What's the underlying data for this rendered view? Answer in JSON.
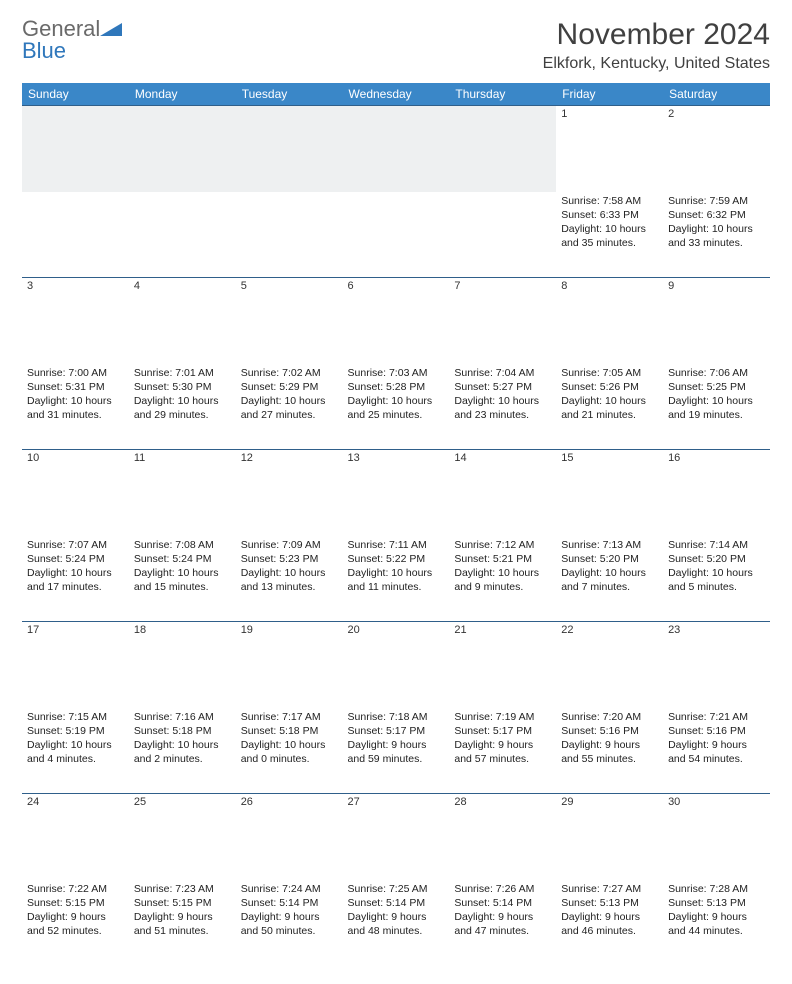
{
  "logo": {
    "part1": "General",
    "part2": "Blue"
  },
  "header": {
    "month_title": "November 2024",
    "location": "Elkfork, Kentucky, United States"
  },
  "colors": {
    "header_bg": "#3a87c8",
    "header_text": "#ffffff",
    "daynum_bg": "#eef0f1",
    "border": "#2f5f8a",
    "logo_gray": "#6a6a6a",
    "logo_blue": "#2f77bb",
    "text": "#222222"
  },
  "day_names": [
    "Sunday",
    "Monday",
    "Tuesday",
    "Wednesday",
    "Thursday",
    "Friday",
    "Saturday"
  ],
  "weeks": [
    {
      "nums": [
        "",
        "",
        "",
        "",
        "",
        "1",
        "2"
      ],
      "cells": [
        null,
        null,
        null,
        null,
        null,
        {
          "sunrise": "7:58 AM",
          "sunset": "6:33 PM",
          "daylight": "10 hours and 35 minutes."
        },
        {
          "sunrise": "7:59 AM",
          "sunset": "6:32 PM",
          "daylight": "10 hours and 33 minutes."
        }
      ]
    },
    {
      "nums": [
        "3",
        "4",
        "5",
        "6",
        "7",
        "8",
        "9"
      ],
      "cells": [
        {
          "sunrise": "7:00 AM",
          "sunset": "5:31 PM",
          "daylight": "10 hours and 31 minutes."
        },
        {
          "sunrise": "7:01 AM",
          "sunset": "5:30 PM",
          "daylight": "10 hours and 29 minutes."
        },
        {
          "sunrise": "7:02 AM",
          "sunset": "5:29 PM",
          "daylight": "10 hours and 27 minutes."
        },
        {
          "sunrise": "7:03 AM",
          "sunset": "5:28 PM",
          "daylight": "10 hours and 25 minutes."
        },
        {
          "sunrise": "7:04 AM",
          "sunset": "5:27 PM",
          "daylight": "10 hours and 23 minutes."
        },
        {
          "sunrise": "7:05 AM",
          "sunset": "5:26 PM",
          "daylight": "10 hours and 21 minutes."
        },
        {
          "sunrise": "7:06 AM",
          "sunset": "5:25 PM",
          "daylight": "10 hours and 19 minutes."
        }
      ]
    },
    {
      "nums": [
        "10",
        "11",
        "12",
        "13",
        "14",
        "15",
        "16"
      ],
      "cells": [
        {
          "sunrise": "7:07 AM",
          "sunset": "5:24 PM",
          "daylight": "10 hours and 17 minutes."
        },
        {
          "sunrise": "7:08 AM",
          "sunset": "5:24 PM",
          "daylight": "10 hours and 15 minutes."
        },
        {
          "sunrise": "7:09 AM",
          "sunset": "5:23 PM",
          "daylight": "10 hours and 13 minutes."
        },
        {
          "sunrise": "7:11 AM",
          "sunset": "5:22 PM",
          "daylight": "10 hours and 11 minutes."
        },
        {
          "sunrise": "7:12 AM",
          "sunset": "5:21 PM",
          "daylight": "10 hours and 9 minutes."
        },
        {
          "sunrise": "7:13 AM",
          "sunset": "5:20 PM",
          "daylight": "10 hours and 7 minutes."
        },
        {
          "sunrise": "7:14 AM",
          "sunset": "5:20 PM",
          "daylight": "10 hours and 5 minutes."
        }
      ]
    },
    {
      "nums": [
        "17",
        "18",
        "19",
        "20",
        "21",
        "22",
        "23"
      ],
      "cells": [
        {
          "sunrise": "7:15 AM",
          "sunset": "5:19 PM",
          "daylight": "10 hours and 4 minutes."
        },
        {
          "sunrise": "7:16 AM",
          "sunset": "5:18 PM",
          "daylight": "10 hours and 2 minutes."
        },
        {
          "sunrise": "7:17 AM",
          "sunset": "5:18 PM",
          "daylight": "10 hours and 0 minutes."
        },
        {
          "sunrise": "7:18 AM",
          "sunset": "5:17 PM",
          "daylight": "9 hours and 59 minutes."
        },
        {
          "sunrise": "7:19 AM",
          "sunset": "5:17 PM",
          "daylight": "9 hours and 57 minutes."
        },
        {
          "sunrise": "7:20 AM",
          "sunset": "5:16 PM",
          "daylight": "9 hours and 55 minutes."
        },
        {
          "sunrise": "7:21 AM",
          "sunset": "5:16 PM",
          "daylight": "9 hours and 54 minutes."
        }
      ]
    },
    {
      "nums": [
        "24",
        "25",
        "26",
        "27",
        "28",
        "29",
        "30"
      ],
      "cells": [
        {
          "sunrise": "7:22 AM",
          "sunset": "5:15 PM",
          "daylight": "9 hours and 52 minutes."
        },
        {
          "sunrise": "7:23 AM",
          "sunset": "5:15 PM",
          "daylight": "9 hours and 51 minutes."
        },
        {
          "sunrise": "7:24 AM",
          "sunset": "5:14 PM",
          "daylight": "9 hours and 50 minutes."
        },
        {
          "sunrise": "7:25 AM",
          "sunset": "5:14 PM",
          "daylight": "9 hours and 48 minutes."
        },
        {
          "sunrise": "7:26 AM",
          "sunset": "5:14 PM",
          "daylight": "9 hours and 47 minutes."
        },
        {
          "sunrise": "7:27 AM",
          "sunset": "5:13 PM",
          "daylight": "9 hours and 46 minutes."
        },
        {
          "sunrise": "7:28 AM",
          "sunset": "5:13 PM",
          "daylight": "9 hours and 44 minutes."
        }
      ]
    }
  ],
  "labels": {
    "sunrise": "Sunrise: ",
    "sunset": "Sunset: ",
    "daylight": "Daylight: "
  }
}
